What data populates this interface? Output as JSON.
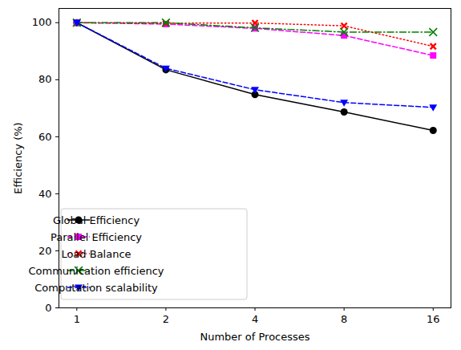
{
  "chart_data": {
    "type": "line",
    "xlabel": "Number of Processes",
    "ylabel": "Efficiency (%)",
    "x": [
      1,
      2,
      4,
      8,
      16
    ],
    "log": "x",
    "xlim": [
      0.87,
      18.38
    ],
    "xticks": [
      1,
      2,
      4,
      8,
      16
    ],
    "ylim": [
      0,
      105
    ],
    "yticks": [
      0,
      20,
      40,
      60,
      80,
      100
    ],
    "grid": false,
    "legend": "lower left",
    "series": [
      {
        "name": "Global Efficiency",
        "color": "#000000",
        "marker": "circle",
        "line_style": "solid",
        "values": [
          100,
          83.5,
          74.8,
          68.7,
          62.2
        ]
      },
      {
        "name": "Parallel Efficiency",
        "color": "#ff00ff",
        "marker": "square",
        "line_style": "dashed",
        "values": [
          100,
          99.5,
          98.0,
          95.5,
          88.5
        ]
      },
      {
        "name": "Load Balance",
        "color": "#ff0000",
        "marker": "filled_x",
        "line_style": "dotted",
        "values": [
          100,
          99.8,
          99.9,
          98.9,
          91.7
        ]
      },
      {
        "name": "Communication efficiency",
        "color": "#008000",
        "marker": "x",
        "line_style": "dashdot",
        "values": [
          100,
          100,
          98.2,
          96.7,
          96.7
        ]
      },
      {
        "name": "Computation scalability",
        "color": "#0000ff",
        "marker": "triangle_down",
        "line_style": "dashed",
        "values": [
          100,
          84.0,
          76.5,
          72.0,
          70.3
        ]
      }
    ]
  }
}
